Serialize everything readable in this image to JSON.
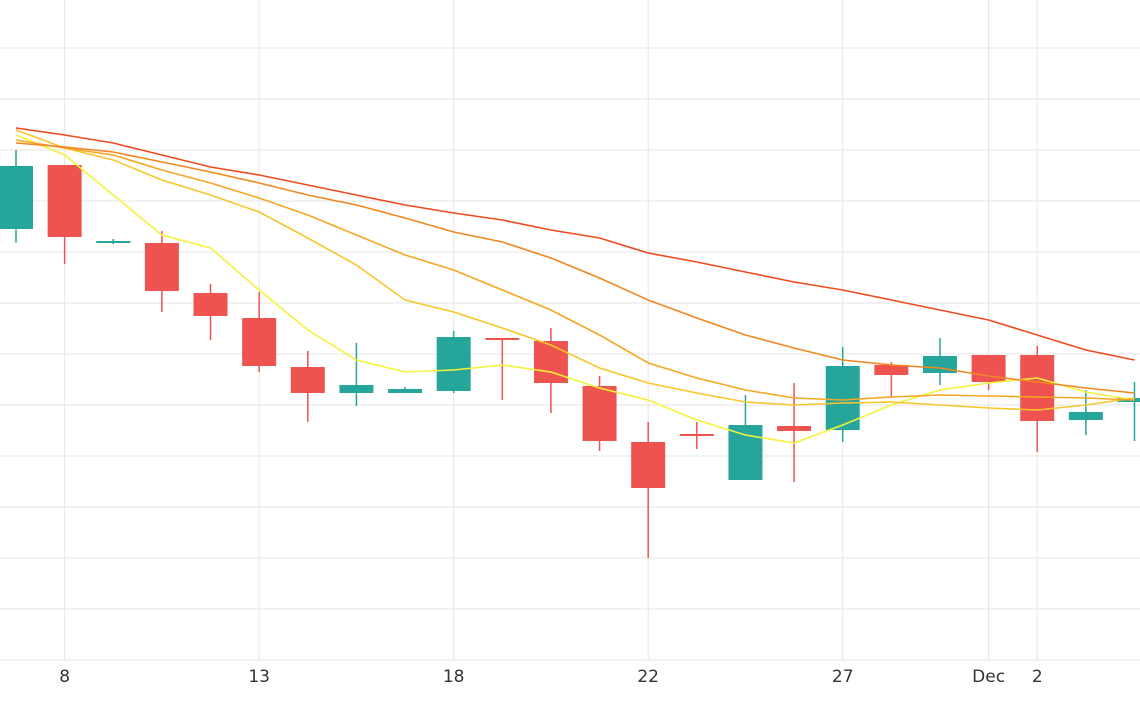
{
  "chart_data": {
    "type": "candlestick",
    "categories": [
      null,
      "8",
      null,
      null,
      null,
      "13",
      null,
      null,
      null,
      "18",
      null,
      null,
      null,
      "22",
      null,
      null,
      null,
      "27",
      null,
      null,
      "Dec",
      "2",
      null,
      null
    ],
    "open": [
      431,
      495,
      419,
      417,
      367,
      342,
      293,
      267,
      267,
      269,
      322,
      319,
      274,
      218,
      226,
      180,
      234,
      230,
      295,
      287,
      305,
      305,
      240,
      258
    ],
    "high": [
      510,
      495,
      421,
      429,
      376,
      368,
      309,
      317,
      273,
      329,
      322,
      332,
      284,
      238,
      238,
      265,
      277,
      313,
      298,
      322,
      305,
      314,
      270,
      278
    ],
    "low": [
      417,
      396,
      416,
      348,
      320,
      288,
      238,
      254,
      267,
      267,
      260,
      247,
      209,
      102,
      211,
      180,
      178,
      218,
      263,
      275,
      270,
      208,
      225,
      219
    ],
    "close": [
      494,
      423,
      419,
      369,
      344,
      294,
      267,
      275,
      271,
      323,
      320,
      277,
      219,
      172,
      224,
      235,
      229,
      294,
      285,
      304,
      278,
      239,
      248,
      262
    ],
    "up_color": "#26a69a",
    "down_color": "#ef5350",
    "lines": [
      {
        "color": "#f5f23a",
        "values": [
          525,
          505,
          465,
          425,
          412,
          370,
          330,
          300,
          288,
          290,
          295,
          288,
          272,
          260,
          240,
          225,
          217,
          235,
          255,
          270,
          277,
          282,
          268,
          260
        ]
      },
      {
        "color": "#f7c62a",
        "values": [
          530,
          512,
          500,
          480,
          465,
          448,
          422,
          395,
          360,
          348,
          332,
          315,
          292,
          277,
          267,
          258,
          255,
          257,
          258,
          255,
          252,
          250,
          255,
          262
        ]
      },
      {
        "color": "#f5a623",
        "values": [
          520,
          512,
          505,
          490,
          477,
          462,
          445,
          425,
          405,
          390,
          370,
          350,
          325,
          297,
          282,
          270,
          262,
          260,
          263,
          265,
          264,
          263,
          262,
          260
        ]
      },
      {
        "color": "#f2861f",
        "values": [
          517,
          513,
          508,
          498,
          488,
          477,
          465,
          455,
          442,
          428,
          418,
          402,
          382,
          360,
          342,
          325,
          312,
          300,
          295,
          292,
          284,
          278,
          272,
          267
        ]
      },
      {
        "color": "#ee4a1e",
        "values": [
          532,
          525,
          517,
          505,
          493,
          485,
          475,
          465,
          455,
          447,
          440,
          430,
          422,
          407,
          398,
          388,
          378,
          370,
          360,
          350,
          340,
          325,
          310,
          300
        ]
      }
    ],
    "ylim": [
      0,
      660
    ],
    "yticks": [
      0,
      51,
      102,
      153,
      204,
      255,
      306,
      357,
      408,
      459,
      510,
      561,
      612
    ],
    "grid": true
  }
}
